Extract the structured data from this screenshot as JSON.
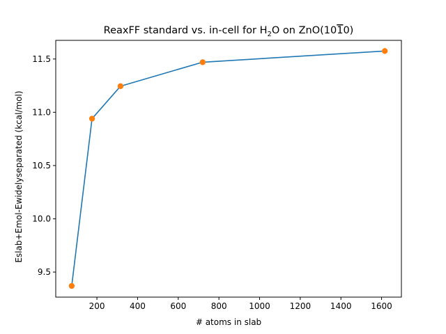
{
  "chart_data": {
    "type": "line",
    "title": {
      "prefix": "ReaxFF standard vs. in-cell for H",
      "subscript": "2",
      "middle": "O on ZnO(10",
      "overbar_digit": "1",
      "suffix": "0)"
    },
    "xlabel": "# atoms in slab",
    "ylabel": "Eslab+Emol-Ewidelyseparated (kcal/mol)",
    "xlim": [
      -2.5,
      1697.5
    ],
    "ylim": [
      9.265,
      11.675
    ],
    "x_ticks": [
      200,
      400,
      600,
      800,
      1000,
      1200,
      1400,
      1600
    ],
    "y_ticks": [
      9.5,
      10.0,
      10.5,
      11.0,
      11.5
    ],
    "y_tick_labels": [
      "9.5",
      "10.0",
      "10.5",
      "11.0",
      "11.5"
    ],
    "grid": false,
    "series": [
      {
        "x": [
          76,
          176,
          316,
          720,
          1616
        ],
        "y": [
          9.37,
          10.94,
          11.245,
          11.47,
          11.575
        ],
        "line_color": "#1f77b4",
        "marker_color": "#ff7f0e"
      }
    ]
  }
}
